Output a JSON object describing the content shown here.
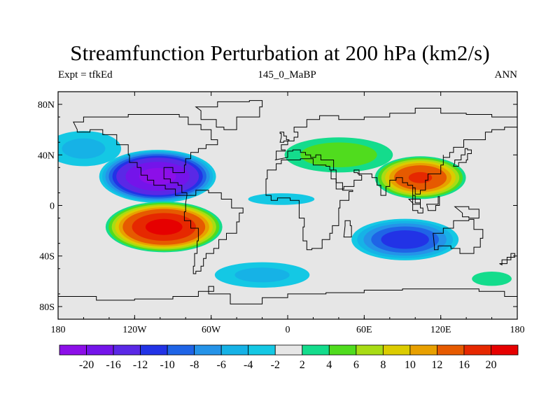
{
  "title": "Streamfunction Perturbation at 200 hPa (km2/s)",
  "subtitle_left": "Expt = tfkEd",
  "subtitle_center": "145_0_MaBP",
  "subtitle_right": "ANN",
  "y_axis": {
    "lat_range": [
      -90,
      90
    ],
    "ticks": [
      {
        "value": 80,
        "label": "80N"
      },
      {
        "value": 40,
        "label": "40N"
      },
      {
        "value": 0,
        "label": "0"
      },
      {
        "value": -40,
        "label": "40S"
      },
      {
        "value": -80,
        "label": "80S"
      }
    ]
  },
  "x_axis": {
    "lon_range": [
      -180,
      180
    ],
    "ticks": [
      {
        "value": -180,
        "label": "180"
      },
      {
        "value": -120,
        "label": "120W"
      },
      {
        "value": -60,
        "label": "60W"
      },
      {
        "value": 0,
        "label": "0"
      },
      {
        "value": 60,
        "label": "60E"
      },
      {
        "value": 120,
        "label": "120E"
      },
      {
        "value": 180,
        "label": "180"
      }
    ]
  },
  "colorbar": {
    "levels": [
      "-20",
      "-16",
      "-12",
      "-10",
      "-8",
      "-6",
      "-4",
      "-2",
      "2",
      "4",
      "6",
      "8",
      "10",
      "12",
      "16",
      "20"
    ],
    "colors": [
      "#8c0fe8",
      "#7414ea",
      "#5a28e6",
      "#2233e6",
      "#1f64e6",
      "#2593e8",
      "#16b2e6",
      "#14c8e4",
      "#e6e6e6",
      "#14dc8c",
      "#50dc1e",
      "#a8dc14",
      "#dccc00",
      "#e8a000",
      "#e65a00",
      "#e62800",
      "#e60000"
    ]
  },
  "fields": {
    "background_color": "#e6e6e6",
    "cells": [
      {
        "name": "north-pacific-low",
        "center": [
          -102,
          23
        ],
        "radius": [
          48,
          22
        ],
        "peak": -22
      },
      {
        "name": "south-pacific-high",
        "center": [
          -97,
          -17
        ],
        "radius": [
          48,
          21
        ],
        "peak": 22
      },
      {
        "name": "asia-high",
        "center": [
          104,
          22
        ],
        "radius": [
          38,
          18
        ],
        "peak": 17
      },
      {
        "name": "south-indian-low",
        "center": [
          92,
          -27
        ],
        "radius": [
          46,
          18
        ],
        "peak": -12
      },
      {
        "name": "northern-eurasia-ridge",
        "center": [
          40,
          40
        ],
        "radius": [
          52,
          17
        ],
        "peak": 6
      },
      {
        "name": "north-atlantic-trough",
        "center": [
          -160,
          45
        ],
        "radius": [
          38,
          18
        ],
        "peak": -5
      },
      {
        "name": "southern-ocean-trough",
        "center": [
          -20,
          -55
        ],
        "radius": [
          48,
          13
        ],
        "peak": -5
      },
      {
        "name": "tropical-atlantic-low",
        "center": [
          -5,
          5
        ],
        "radius": [
          45,
          8
        ],
        "peak": -3
      },
      {
        "name": "southern-pacific-ridge",
        "center": [
          160,
          -58
        ],
        "radius": [
          22,
          8
        ],
        "peak": 4
      }
    ]
  }
}
